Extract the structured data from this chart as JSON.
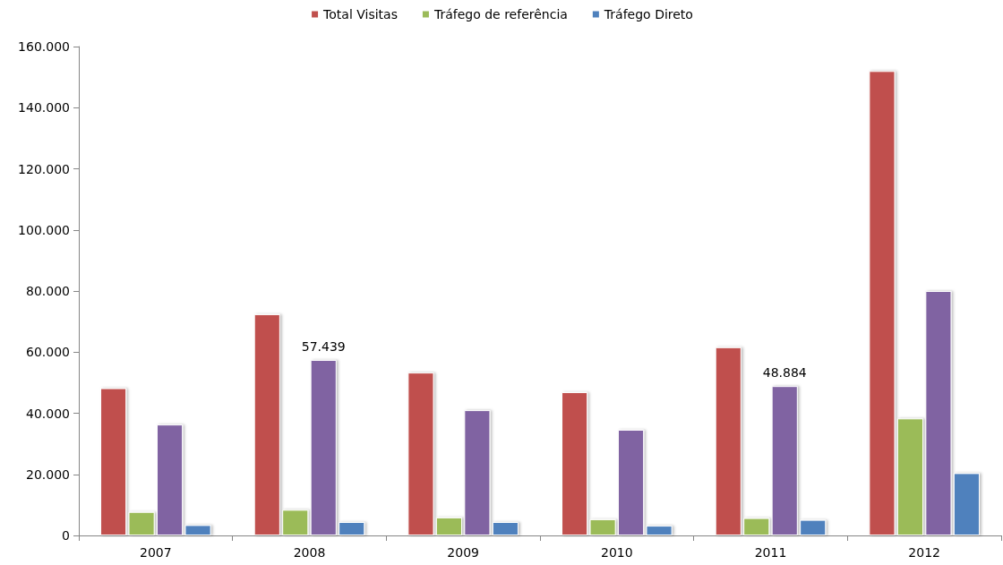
{
  "chart_data": {
    "type": "bar",
    "categories": [
      "2007",
      "2008",
      "2009",
      "2010",
      "2011",
      "2012"
    ],
    "series": [
      {
        "name": "Total Visitas",
        "color": "#c0504d",
        "values": [
          48200,
          72400,
          53300,
          46900,
          61600,
          152000
        ]
      },
      {
        "name": "Tráfego de referência",
        "color": "#9bbb59",
        "values": [
          7700,
          8400,
          5900,
          5300,
          5700,
          38300
        ]
      },
      {
        "color": "#8064a2",
        "values": [
          36300,
          57439,
          41000,
          34600,
          48884,
          80000
        ],
        "value_labels": [
          null,
          "57.439",
          null,
          null,
          "48.884",
          null
        ]
      },
      {
        "name": "Tráfego Direto",
        "color": "#4f81bd",
        "values": [
          3400,
          4400,
          4400,
          3200,
          5100,
          20400
        ]
      }
    ],
    "ylim": [
      0,
      160000
    ],
    "yticks": [
      {
        "value": 0,
        "label": "0"
      },
      {
        "value": 20000,
        "label": "20.000"
      },
      {
        "value": 40000,
        "label": "40.000"
      },
      {
        "value": 60000,
        "label": "60.000"
      },
      {
        "value": 80000,
        "label": "80.000"
      },
      {
        "value": 100000,
        "label": "100.000"
      },
      {
        "value": 120000,
        "label": "120.000"
      },
      {
        "value": 140000,
        "label": "140.000"
      },
      {
        "value": 160000,
        "label": "160.000"
      }
    ],
    "grid": false,
    "legend": "top"
  }
}
